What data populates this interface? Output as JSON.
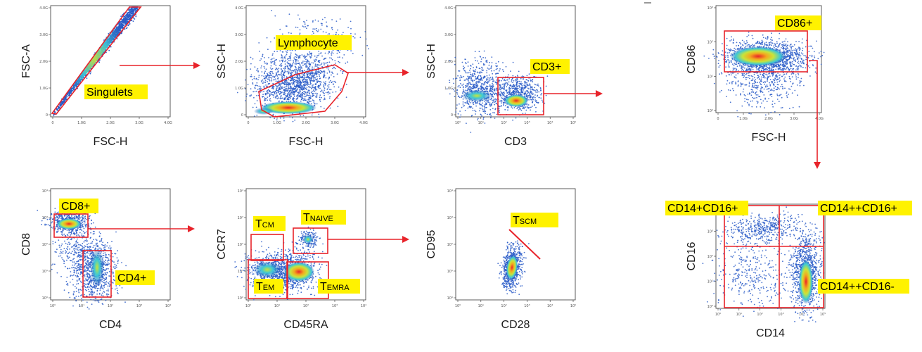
{
  "accent_red": "#e8232a",
  "label_bg": "#fff200",
  "panels": [
    {
      "id": "singlets",
      "xlabel": "FSC-H",
      "ylabel": "FSC-A",
      "xticks": [
        "0",
        "1.0G",
        "2.0G",
        "3.0G",
        "4.0G"
      ],
      "yticks": [
        "0",
        "1.0G",
        "2.0G",
        "3.0G",
        "4.0G"
      ],
      "gates": [
        {
          "label": "Singulets"
        }
      ]
    },
    {
      "id": "lymphocyte",
      "xlabel": "FSC-H",
      "ylabel": "SSC-H",
      "xticks": [
        "0",
        "1.0G",
        "2.0G",
        "3.0G",
        "4.0G"
      ],
      "yticks": [
        "0",
        "1.0G",
        "2.0G",
        "3.0G",
        "4.0G"
      ],
      "gates": [
        {
          "label": "Lymphocyte"
        }
      ]
    },
    {
      "id": "cd3",
      "xlabel": "CD3",
      "ylabel": "SSC-H",
      "xticks": [
        "10⁰",
        "10¹",
        "10²",
        "10³",
        "10⁴",
        "10⁵"
      ],
      "yticks": [
        "0",
        "1.0G",
        "2.0G",
        "3.0G",
        "4.0G"
      ],
      "gates": [
        {
          "label": "CD3+"
        }
      ]
    },
    {
      "id": "cd86",
      "xlabel": "FSC-H",
      "ylabel": "CD86",
      "xticks": [
        "0",
        "1.0G",
        "2.0G",
        "3.0G",
        "4.0G"
      ],
      "yticks": [
        "10⁰",
        "10¹",
        "10²",
        "10³"
      ],
      "gates": [
        {
          "label": "CD86+"
        }
      ]
    },
    {
      "id": "cd4cd8",
      "xlabel": "CD4",
      "ylabel": "CD8",
      "xticks": [
        "10⁰",
        "10¹",
        "10²",
        "10³",
        "10⁴"
      ],
      "yticks": [
        "10⁰",
        "10¹",
        "10²",
        "10³",
        "10⁴"
      ],
      "gates": [
        {
          "label": "CD8+"
        },
        {
          "label": "CD4+"
        }
      ]
    },
    {
      "id": "ccr7",
      "xlabel": "CD45RA",
      "ylabel": "CCR7",
      "xticks": [
        "10⁰",
        "10¹",
        "10²",
        "10³",
        "10⁴"
      ],
      "yticks": [
        "10⁰",
        "10¹",
        "10²",
        "10³",
        "10⁴"
      ],
      "gates": [
        {
          "label": "T",
          "sub": "CM"
        },
        {
          "label": "T",
          "sub": "NAIVE"
        },
        {
          "label": "T",
          "sub": "EM"
        },
        {
          "label": "T",
          "sub": "EMRA"
        }
      ]
    },
    {
      "id": "tscm",
      "xlabel": "CD28",
      "ylabel": "CD95",
      "xticks": [
        "10⁰",
        "10¹",
        "10²",
        "10³",
        "10⁴",
        "10⁵"
      ],
      "yticks": [
        "10⁰",
        "10¹",
        "10²",
        "10³",
        "10⁴"
      ],
      "gates": [
        {
          "label": "T",
          "sub": "SCM"
        }
      ]
    },
    {
      "id": "mono",
      "xlabel": "CD14",
      "ylabel": "CD16",
      "xticks": [
        "10⁰",
        "10¹",
        "10²",
        "10³",
        "10⁴",
        "10⁵"
      ],
      "yticks": [
        "10⁰",
        "10¹",
        "10²",
        "10³",
        "10⁴"
      ],
      "gates": [
        {
          "label": "CD14+CD16+"
        },
        {
          "label": "CD14++CD16+"
        },
        {
          "label": "CD14++CD16-"
        }
      ]
    }
  ]
}
